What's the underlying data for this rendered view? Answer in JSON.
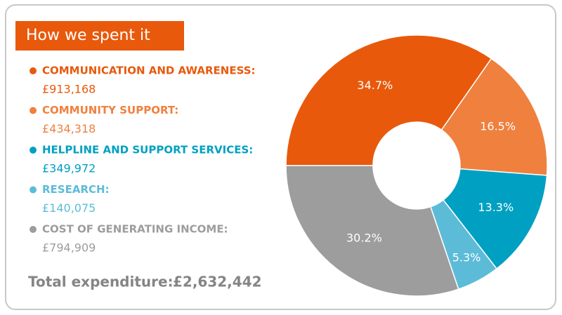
{
  "chart_data": {
    "type": "donut",
    "title": "How we spent it",
    "categories": [
      "COMMUNICATION AND AWARENESS:",
      "COMMUNITY SUPPORT:",
      "HELPLINE AND SUPPORT SERVICES:",
      "RESEARCH:",
      "COST OF GENERATING INCOME:"
    ],
    "values": [
      34.7,
      16.5,
      13.3,
      5.3,
      30.2
    ],
    "value_labels": [
      "34.7%",
      "16.5%",
      "13.3%",
      "5.3%",
      "30.2%"
    ],
    "amounts": [
      {
        "value": 913168,
        "label": "£913,168"
      },
      {
        "value": 434318,
        "label": "£434,318"
      },
      {
        "value": 349972,
        "label": "£349,972"
      },
      {
        "value": 140075,
        "label": "£140,075"
      },
      {
        "value": 794909,
        "label": "£794,909"
      }
    ],
    "colors": [
      "#e8590c",
      "#f0803e",
      "#00a0c2",
      "#5cbcd8",
      "#9d9d9d"
    ],
    "total_label": "Total expenditure:",
    "total": {
      "value": 2632442,
      "label": "£2,632,442"
    }
  }
}
